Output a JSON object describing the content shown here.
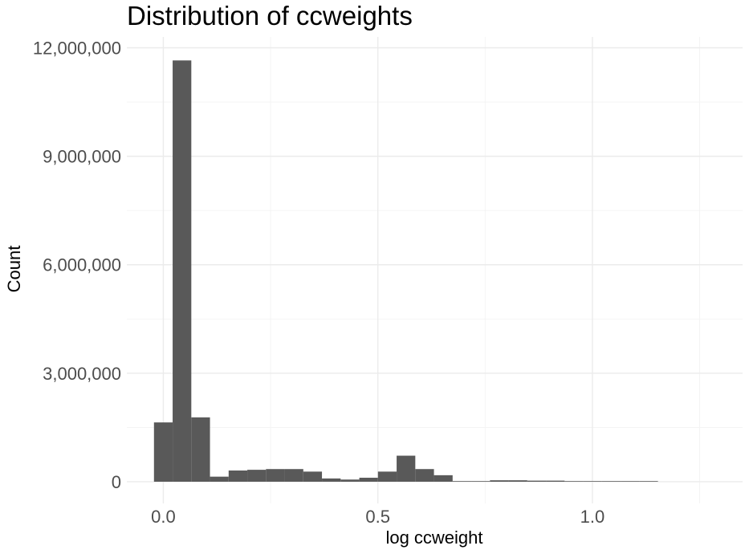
{
  "chart_data": {
    "type": "bar",
    "title": "Distribution of ccweights",
    "xlabel": "log ccweight",
    "ylabel": "Count",
    "xlim": [
      -0.085,
      1.35
    ],
    "ylim": [
      -600000,
      12300000
    ],
    "x_ticks": [
      {
        "value": 0.0,
        "label": "0.0"
      },
      {
        "value": 0.5,
        "label": "0.5"
      },
      {
        "value": 1.0,
        "label": "1.0"
      }
    ],
    "y_ticks": [
      {
        "value": 0,
        "label": "0"
      },
      {
        "value": 3000000,
        "label": "3,000,000"
      },
      {
        "value": 6000000,
        "label": "6,000,000"
      },
      {
        "value": 9000000,
        "label": "9,000,000"
      },
      {
        "value": 12000000,
        "label": "12,000,000"
      }
    ],
    "x_minor_gridlines": [
      0.25,
      0.75,
      1.25
    ],
    "y_minor_gridlines": [
      1500000,
      4500000,
      7500000,
      10500000
    ],
    "grid": true,
    "bar_color": "#595959",
    "bin_width": 0.0435,
    "bins": [
      {
        "x": 0.0,
        "count": 1640000
      },
      {
        "x": 0.0435,
        "count": 11650000
      },
      {
        "x": 0.087,
        "count": 1780000
      },
      {
        "x": 0.1305,
        "count": 140000
      },
      {
        "x": 0.174,
        "count": 310000
      },
      {
        "x": 0.2175,
        "count": 330000
      },
      {
        "x": 0.261,
        "count": 350000
      },
      {
        "x": 0.3045,
        "count": 350000
      },
      {
        "x": 0.348,
        "count": 280000
      },
      {
        "x": 0.3915,
        "count": 90000
      },
      {
        "x": 0.435,
        "count": 60000
      },
      {
        "x": 0.4785,
        "count": 110000
      },
      {
        "x": 0.522,
        "count": 280000
      },
      {
        "x": 0.5655,
        "count": 720000
      },
      {
        "x": 0.609,
        "count": 350000
      },
      {
        "x": 0.6525,
        "count": 180000
      },
      {
        "x": 0.696,
        "count": 15000
      },
      {
        "x": 0.7395,
        "count": 15000
      },
      {
        "x": 0.783,
        "count": 40000
      },
      {
        "x": 0.8265,
        "count": 40000
      },
      {
        "x": 0.87,
        "count": 30000
      },
      {
        "x": 0.9135,
        "count": 30000
      },
      {
        "x": 0.957,
        "count": 15000
      },
      {
        "x": 1.0005,
        "count": 15000
      },
      {
        "x": 1.044,
        "count": 15000
      },
      {
        "x": 1.0875,
        "count": 15000
      },
      {
        "x": 1.131,
        "count": 15000
      }
    ]
  }
}
